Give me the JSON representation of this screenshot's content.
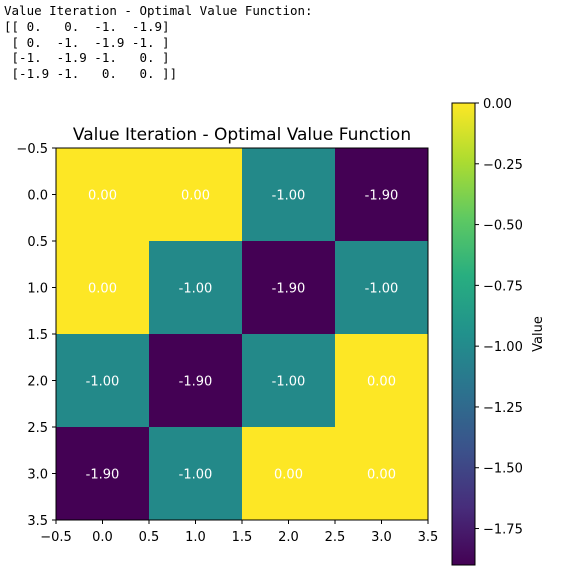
{
  "console": {
    "header": "Value Iteration - Optimal Value Function:",
    "rows": [
      "[[ 0.   0.  -1.  -1.9]",
      " [ 0.  -1.  -1.9 -1. ]",
      " [-1.  -1.9 -1.   0. ]",
      " [-1.9 -1.   0.   0. ]]"
    ]
  },
  "chart_data": {
    "type": "heatmap",
    "title": "Value Iteration - Optimal Value Function",
    "xlabel": "",
    "ylabel": "",
    "z": [
      [
        0.0,
        0.0,
        -1.0,
        -1.9
      ],
      [
        0.0,
        -1.0,
        -1.9,
        -1.0
      ],
      [
        -1.0,
        -1.9,
        -1.0,
        0.0
      ],
      [
        -1.9,
        -1.0,
        0.0,
        0.0
      ]
    ],
    "cell_labels": [
      [
        "0.00",
        "0.00",
        "-1.00",
        "-1.90"
      ],
      [
        "0.00",
        "-1.00",
        "-1.90",
        "-1.00"
      ],
      [
        "-1.00",
        "-1.90",
        "-1.00",
        "0.00"
      ],
      [
        "-1.90",
        "-1.00",
        "0.00",
        "0.00"
      ]
    ],
    "x_ticks": [
      "−0.5",
      "0.0",
      "0.5",
      "1.0",
      "1.5",
      "2.0",
      "2.5",
      "3.0",
      "3.5"
    ],
    "y_ticks": [
      "−0.5",
      "0.0",
      "0.5",
      "1.0",
      "1.5",
      "2.0",
      "2.5",
      "3.0",
      "3.5"
    ],
    "xlim": [
      -0.5,
      3.5
    ],
    "ylim": [
      3.5,
      -0.5
    ],
    "colormap": "viridis",
    "colors": {
      "low": "#440154",
      "mid": "#21918c",
      "high": "#fde725"
    },
    "colorbar": {
      "label": "Value",
      "range": [
        -1.9,
        0.0
      ],
      "ticks": [
        "0.00",
        "−0.25",
        "−0.50",
        "−0.75",
        "−1.00",
        "−1.25",
        "−1.50",
        "−1.75"
      ],
      "tick_values": [
        0.0,
        -0.25,
        -0.5,
        -0.75,
        -1.0,
        -1.25,
        -1.5,
        -1.75
      ]
    },
    "text_color": "#ffffff"
  }
}
